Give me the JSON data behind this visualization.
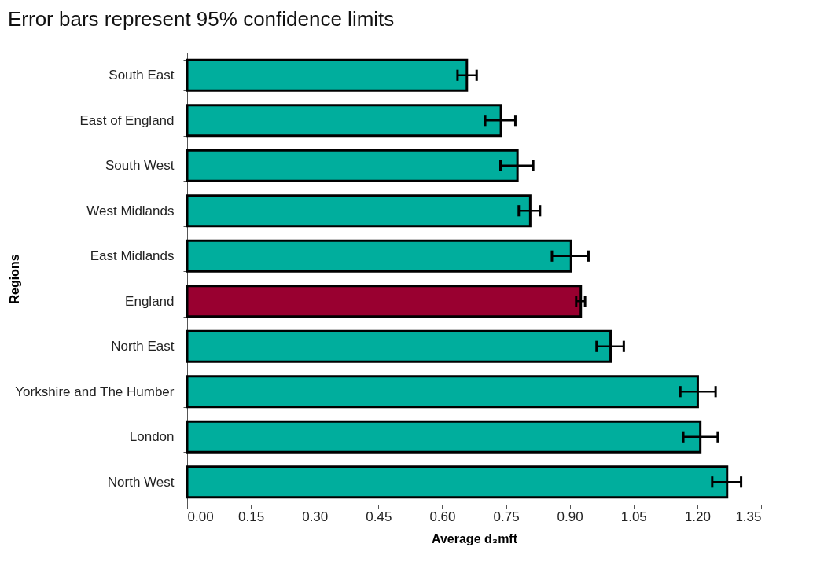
{
  "chart_data": {
    "type": "bar",
    "orientation": "horizontal",
    "title": "Error bars represent 95% confidence limits",
    "xlabel": "Average d₃mft",
    "ylabel": "Regions",
    "categories": [
      "South East",
      "East of England",
      "South West",
      "West Midlands",
      "East Midlands",
      "England",
      "North East",
      "Yorkshire and The Humber",
      "London",
      "North West"
    ],
    "values": [
      0.658,
      0.738,
      0.777,
      0.807,
      0.903,
      0.926,
      0.996,
      1.201,
      1.207,
      1.27
    ],
    "errors": [
      [
        0.636,
        0.681
      ],
      [
        0.701,
        0.772
      ],
      [
        0.737,
        0.814
      ],
      [
        0.78,
        0.83
      ],
      [
        0.858,
        0.944
      ],
      [
        0.915,
        0.936
      ],
      [
        0.963,
        1.027
      ],
      [
        1.16,
        1.243
      ],
      [
        1.167,
        1.248
      ],
      [
        1.235,
        1.303
      ]
    ],
    "colors": [
      "#00ae9d",
      "#00ae9d",
      "#00ae9d",
      "#00ae9d",
      "#00ae9d",
      "#990030",
      "#00ae9d",
      "#00ae9d",
      "#00ae9d",
      "#00ae9d"
    ],
    "xlim": [
      0,
      1.35
    ],
    "xticks": [
      {
        "value": 0,
        "label": "0.00"
      },
      0.15,
      {
        "value": 0.3,
        "label": "0.30"
      },
      0.45,
      {
        "value": 0.6,
        "label": "0.60"
      },
      0.75,
      {
        "value": 0.9,
        "label": "0.90"
      },
      1.05,
      {
        "value": 1.2,
        "label": "1.20"
      },
      1.35
    ],
    "grid": false
  }
}
